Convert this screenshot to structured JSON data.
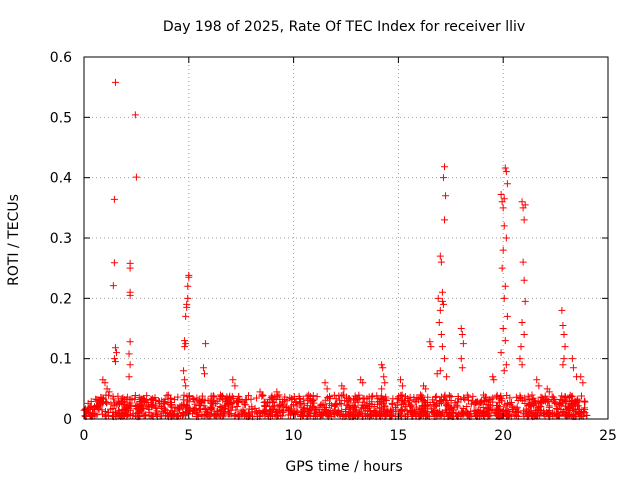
{
  "chart_data": {
    "type": "scatter",
    "title": "Day 198 of 2025, Rate Of TEC Index for receiver lliv",
    "xlabel": "GPS time / hours",
    "ylabel": "ROTI / TECUs",
    "xlim": [
      0,
      25
    ],
    "ylim": [
      0,
      0.6
    ],
    "xticks": [
      0,
      5,
      10,
      15,
      20,
      25
    ],
    "xtick_labels": [
      "0",
      "5",
      "10",
      "15",
      "20",
      "25"
    ],
    "yticks": [
      0,
      0.1,
      0.2,
      0.3,
      0.4,
      0.5,
      0.6
    ],
    "ytick_labels": [
      "0",
      "0.1",
      "0.2",
      "0.3",
      "0.4",
      "0.5",
      "0.6"
    ],
    "grid": true,
    "marker": "plus",
    "series_color": "#ff0000",
    "series": [
      {
        "name": "ROTI",
        "x": [
          1.5,
          2.45,
          1.45,
          2.5,
          1.45,
          1.4,
          2.2,
          2.2,
          2.2,
          2.2,
          2.2,
          2.15,
          1.5,
          1.45,
          1.5,
          1.55,
          2.2,
          2.15,
          4.8,
          4.85,
          4.9,
          4.95,
          5.0,
          4.95,
          4.85,
          4.9,
          4.8,
          4.75,
          4.8,
          5.0,
          5.8,
          5.7,
          5.75,
          4.85,
          16.9,
          17.0,
          17.05,
          17.1,
          17.15,
          17.2,
          17.25,
          17.2,
          17.1,
          17.0,
          16.95,
          17.05,
          17.1,
          17.2,
          17.0,
          16.85,
          17.15,
          16.5,
          16.55,
          17.3,
          18.0,
          18.05,
          18.1,
          18.0,
          18.05,
          19.9,
          19.95,
          20.0,
          20.05,
          20.1,
          20.15,
          20.2,
          20.05,
          20.15,
          20.0,
          19.95,
          20.1,
          20.05,
          20.2,
          20.0,
          20.1,
          19.9,
          20.15,
          20.05,
          20.9,
          20.95,
          21.0,
          21.05,
          20.95,
          21.0,
          21.05,
          20.9,
          21.0,
          20.85,
          20.8,
          20.9,
          22.8,
          22.85,
          22.9,
          22.95,
          22.9,
          22.85,
          23.3,
          23.35,
          23.5,
          14.2,
          14.25,
          14.3,
          14.35,
          14.2,
          13.2,
          13.3,
          15.1,
          15.2,
          7.1,
          7.2,
          11.5,
          11.6,
          0.9,
          1.0,
          1.1,
          1.2,
          12.3,
          12.4,
          9.2,
          9.3,
          19.5,
          19.55,
          21.6,
          21.7,
          22.1,
          22.2,
          23.7,
          23.8,
          8.4,
          8.5,
          16.2,
          16.3
        ],
        "y": [
          0.558,
          0.504,
          0.364,
          0.401,
          0.259,
          0.221,
          0.258,
          0.25,
          0.21,
          0.205,
          0.128,
          0.108,
          0.118,
          0.1,
          0.095,
          0.11,
          0.09,
          0.07,
          0.13,
          0.125,
          0.19,
          0.2,
          0.235,
          0.22,
          0.17,
          0.185,
          0.12,
          0.08,
          0.065,
          0.238,
          0.125,
          0.085,
          0.075,
          0.055,
          0.2,
          0.27,
          0.26,
          0.21,
          0.4,
          0.418,
          0.37,
          0.33,
          0.195,
          0.18,
          0.16,
          0.14,
          0.12,
          0.1,
          0.08,
          0.075,
          0.19,
          0.128,
          0.12,
          0.07,
          0.15,
          0.14,
          0.125,
          0.1,
          0.085,
          0.372,
          0.36,
          0.35,
          0.365,
          0.416,
          0.41,
          0.39,
          0.32,
          0.3,
          0.28,
          0.25,
          0.22,
          0.2,
          0.17,
          0.15,
          0.13,
          0.11,
          0.09,
          0.08,
          0.36,
          0.35,
          0.33,
          0.355,
          0.26,
          0.23,
          0.195,
          0.16,
          0.14,
          0.12,
          0.1,
          0.09,
          0.18,
          0.155,
          0.14,
          0.12,
          0.1,
          0.09,
          0.1,
          0.085,
          0.07,
          0.09,
          0.085,
          0.07,
          0.06,
          0.05,
          0.065,
          0.06,
          0.065,
          0.055,
          0.065,
          0.055,
          0.06,
          0.05,
          0.065,
          0.06,
          0.05,
          0.045,
          0.055,
          0.05,
          0.045,
          0.04,
          0.07,
          0.065,
          0.065,
          0.055,
          0.05,
          0.045,
          0.07,
          0.06,
          0.045,
          0.04,
          0.055,
          0.05
        ]
      }
    ],
    "baseline_band": {
      "x_range": [
        0,
        24
      ],
      "y_range": [
        0.0,
        0.04
      ],
      "description": "dense band of points"
    }
  }
}
